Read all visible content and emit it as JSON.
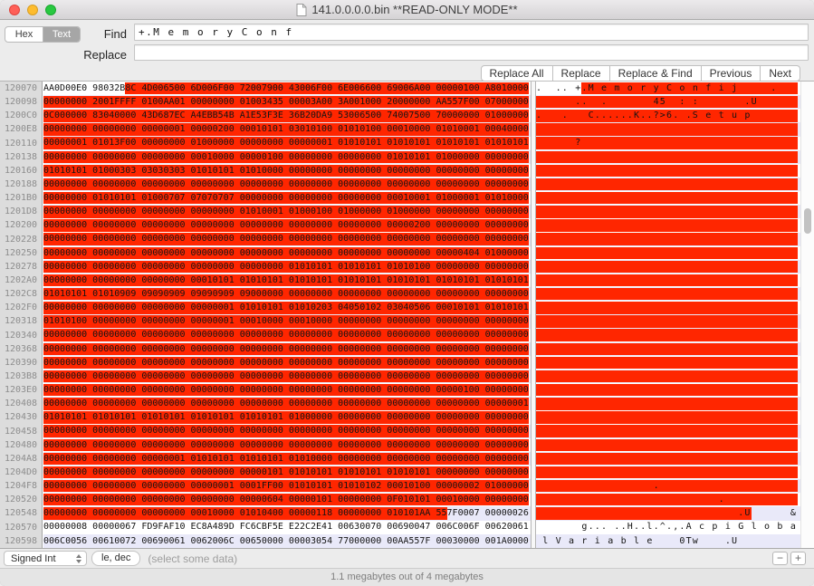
{
  "colors": {
    "selection": "#ff2600",
    "stripe": "#e9e9f9",
    "gutter_bg": "#dcdcdc",
    "traffic_red": "#ff5f57",
    "traffic_yellow": "#febc2e",
    "traffic_green": "#28c840"
  },
  "titlebar": {
    "title": "141.0.0.0.0.bin **READ-ONLY MODE**"
  },
  "findbar": {
    "segment_hex": "Hex",
    "segment_text": "Text",
    "find_label": "Find",
    "find_value": "+.M e m o r y C o n f",
    "replace_label": "Replace",
    "replace_value": "",
    "buttons": [
      "Replace All",
      "Replace",
      "Replace & Find",
      "Previous",
      "Next"
    ]
  },
  "hexview": {
    "rows": [
      {
        "addr": "120070",
        "hpre": "AA0D00E0 98032B",
        "hsel": "8C 4D006500 6D006F00 72007900 43006F00 6E006600 69006A00 00000100 A8010000",
        "fill": true,
        "tpre": ".  .. +",
        "tsel": ".M e m o r y C o n f i j     ."
      },
      {
        "addr": "120098",
        "hsel": "00000000 2001FFFF 0100AA01 00000000 01003435 00003A00 3A001000 20000000 AA557F00 07000000",
        "fill": true,
        "tsel": "      ..  .       45  : :       .U"
      },
      {
        "addr": "1200C0",
        "hsel": "0C000000 83040000 43D687EC A4EBB54B A1E53F3E 36B20DA9 53006500 74007500 70000000 01000000",
        "fill": true,
        "tsel": ".   .   C......K..?>6. .S e t u p"
      },
      {
        "addr": "1200E8",
        "hsel": "00000000 00000000 00000001 00000200 00010101 03010100 01010100 00010000 01010001 00040000",
        "fill": true,
        "tsel": ""
      },
      {
        "addr": "120110",
        "hsel": "00000001 01013F00 00000000 01000000 00000000 00000001 01010101 01010101 01010101 01010101",
        "fill": true,
        "tsel": "      ?"
      },
      {
        "addr": "120138",
        "hsel": "00000000 00000000 00000000 00010000 00000100 00000000 00000000 01010101 01000000 00000000",
        "fill": true,
        "tsel": ""
      },
      {
        "addr": "120160",
        "hsel": "01010101 01000303 03030303 01010101 01010000 00000000 00000000 00000000 00000000 00000000",
        "fill": true,
        "tsel": ""
      },
      {
        "addr": "120188",
        "hsel": "00000000 00000000 00000000 00000000 00000000 00000000 00000000 00000000 00000000 00000000",
        "fill": true,
        "tsel": ""
      },
      {
        "addr": "1201B0",
        "hsel": "00000000 01010101 01000707 07070707 00000000 00000000 00000000 00010001 01000001 01010000",
        "fill": true,
        "tsel": ""
      },
      {
        "addr": "1201D8",
        "hsel": "00000000 00000000 00000000 00000000 01010001 01000100 01000000 01000000 00000000 00000000",
        "fill": true,
        "tsel": ""
      },
      {
        "addr": "120200",
        "hsel": "00000000 00000000 00000000 00000000 00000000 00000000 00000000 00000200 00000000 00000000",
        "fill": true,
        "tsel": ""
      },
      {
        "addr": "120228",
        "hsel": "00000000 00000000 00000000 00000000 00000000 00000000 00000000 00000000 00000000 00000000",
        "fill": true,
        "tsel": ""
      },
      {
        "addr": "120250",
        "hsel": "00000000 00000000 00000000 00000000 00000000 00000000 00000000 00000000 00000404 01000000",
        "fill": true,
        "tsel": ""
      },
      {
        "addr": "120278",
        "hsel": "00000000 00000000 00000000 00000000 00000000 01010101 01010101 01010100 00000000 00000000",
        "fill": true,
        "tsel": ""
      },
      {
        "addr": "1202A0",
        "hsel": "00000000 00000000 00000000 00010101 01010101 01010101 01010101 01010101 01010101 01010101",
        "fill": true,
        "tsel": ""
      },
      {
        "addr": "1202C8",
        "hsel": "01010101 01010909 09090909 09090909 09000000 00000000 00000000 00000000 00000000 00000000",
        "fill": true,
        "tsel": ""
      },
      {
        "addr": "1202F0",
        "hsel": "00000000 00000000 00000000 00000001 01010101 01010203 04050102 03040506 00010101 01010101",
        "fill": true,
        "tsel": ""
      },
      {
        "addr": "120318",
        "hsel": "01010100 00000000 00000000 00000001 00010000 00010000 00000000 00000000 00000000 00000000",
        "fill": true,
        "tsel": ""
      },
      {
        "addr": "120340",
        "hsel": "00000000 00000000 00000000 00000000 00000000 00000000 00000000 00000000 00000000 00000000",
        "fill": true,
        "tsel": ""
      },
      {
        "addr": "120368",
        "hsel": "00000000 00000000 00000000 00000000 00000000 00000000 00000000 00000000 00000000 00000000",
        "fill": true,
        "tsel": ""
      },
      {
        "addr": "120390",
        "hsel": "00000000 00000000 00000000 00000000 00000000 00000000 00000000 00000000 00000000 00000000",
        "fill": true,
        "tsel": ""
      },
      {
        "addr": "1203B8",
        "hsel": "00000000 00000000 00000000 00000000 00000000 00000000 00000000 00000000 00000000 00000000",
        "fill": true,
        "tsel": ""
      },
      {
        "addr": "1203E0",
        "hsel": "00000000 00000000 00000000 00000000 00000000 00000000 00000000 00000000 00000100 00000000",
        "fill": true,
        "tsel": ""
      },
      {
        "addr": "120408",
        "hsel": "00000000 00000000 00000000 00000000 00000000 00000000 00000000 00000000 00000000 00000001",
        "fill": true,
        "tsel": ""
      },
      {
        "addr": "120430",
        "hsel": "01010101 01010101 01010101 01010101 01010101 01000000 00000000 00000000 00000000 00000000",
        "fill": true,
        "tsel": ""
      },
      {
        "addr": "120458",
        "hsel": "00000000 00000000 00000000 00000000 00000000 00000000 00000000 00000000 00000000 00000000",
        "fill": true,
        "tsel": ""
      },
      {
        "addr": "120480",
        "hsel": "00000000 00000000 00000000 00000000 00000000 00000000 00000000 00000000 00000000 00000000",
        "fill": true,
        "tsel": ""
      },
      {
        "addr": "1204A8",
        "hsel": "00000000 00000000 00000001 01010101 01010101 01010000 00000000 00000000 00000000 00000000",
        "fill": true,
        "tsel": ""
      },
      {
        "addr": "1204D0",
        "hsel": "00000000 00000000 00000000 00000000 00000101 01010101 01010101 01010101 00000000 00000000",
        "fill": true,
        "tsel": ""
      },
      {
        "addr": "1204F8",
        "hsel": "00000000 00000000 00000000 00000001 0001FF00 01010101 01010102 00010100 00000002 01000000",
        "fill": true,
        "tsel": "                  ."
      },
      {
        "addr": "120520",
        "hsel": "00000000 00000000 00000000 00000000 00000604 00000101 00000000 0F010101 00010000 00000000",
        "fill": true,
        "tsel": "                            ."
      },
      {
        "addr": "120548",
        "hsel": "00000000 00000000 00000000 00010000 01010400 00000118 00000000 010101AA 55",
        "hpost": "7F0007 00000026",
        "tsel": "                               .U",
        "tpost": "      &"
      },
      {
        "addr": "120570",
        "hpre": "00000008 00000067 FD9FAF10 EC8A489D FC6CBF5E E22C2E41 00630070 00690047 006C006F 00620061",
        "tpre": "       g... ..H..l.^.,.A c p i G l o b a"
      },
      {
        "addr": "120598",
        "hpre": "006C0056 00610072 00690061 0062006C 00650000 00003054 77000000 00AA557F 00030000 001A0000",
        "tpre": " l V a r i a b l e    0Tw    .U"
      }
    ]
  },
  "inspector": {
    "type_selector": "Signed Int",
    "endian_button": "le, dec",
    "hint": "(select some data)",
    "decrease": "−",
    "increase": "+"
  },
  "statusbar": {
    "text": "1.1 megabytes out of 4 megabytes"
  }
}
